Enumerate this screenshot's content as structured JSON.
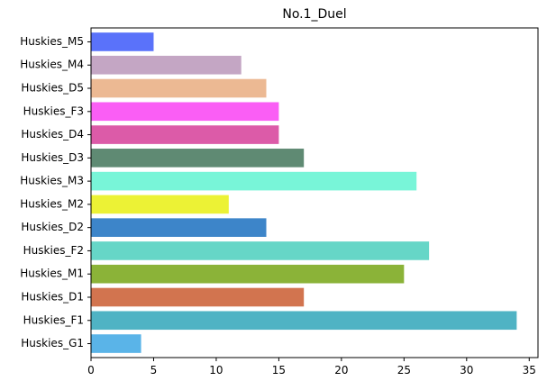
{
  "chart_data": {
    "type": "bar",
    "orientation": "horizontal",
    "title": "No.1_Duel",
    "xlabel": "",
    "ylabel": "",
    "xlim": [
      0,
      35.7
    ],
    "x_ticks": [
      0,
      5,
      10,
      15,
      20,
      25,
      30,
      35
    ],
    "grid": false,
    "categories": [
      "Huskies_G1",
      "Huskies_F1",
      "Huskies_D1",
      "Huskies_M1",
      "Huskies_F2",
      "Huskies_D2",
      "Huskies_M2",
      "Huskies_M3",
      "Huskies_D3",
      "Huskies_D4",
      "Huskies_F3",
      "Huskies_D5",
      "Huskies_M4",
      "Huskies_M5"
    ],
    "values": [
      4,
      34,
      17,
      25,
      27,
      14,
      11,
      26,
      17,
      15,
      15,
      14,
      12,
      5
    ],
    "colors": [
      "#5ab4e8",
      "#4fb3c4",
      "#d2744f",
      "#8bb338",
      "#66d6c7",
      "#3d85c9",
      "#ecf235",
      "#78f5d8",
      "#5f8a73",
      "#dc5ba8",
      "#fa5ef5",
      "#ecb993",
      "#c4a6c4",
      "#5a72fa"
    ]
  }
}
